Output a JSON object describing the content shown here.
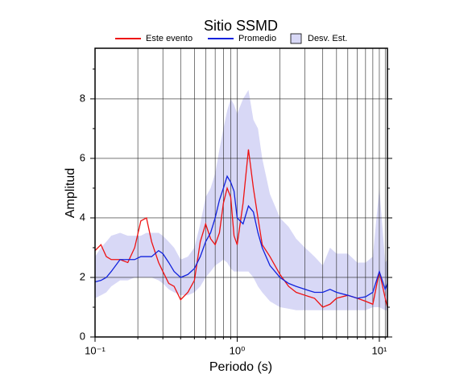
{
  "chart_data": {
    "type": "line",
    "title": "Sitio SSMD",
    "x_label": "Periodo (s)",
    "y_label": "Amplitud",
    "xscale": "log",
    "grid": true,
    "xlim": [
      0.1,
      11.4
    ],
    "ylim": [
      0,
      9.7
    ],
    "xticks": [
      {
        "value": 0.1,
        "label": "10⁻¹"
      },
      {
        "value": 1,
        "label": "10⁰"
      },
      {
        "value": 10,
        "label": "10¹"
      }
    ],
    "xminor": [
      0.2,
      0.3,
      0.4,
      0.5,
      0.6,
      0.7,
      0.8,
      0.9,
      2,
      3,
      4,
      5,
      6,
      7,
      8,
      9,
      11
    ],
    "yticks": [
      0,
      2,
      4,
      6,
      8
    ],
    "yminor": [
      1,
      3,
      5,
      7,
      9
    ],
    "x": [
      0.1,
      0.11,
      0.12,
      0.13,
      0.15,
      0.17,
      0.19,
      0.21,
      0.23,
      0.25,
      0.28,
      0.3,
      0.33,
      0.36,
      0.4,
      0.45,
      0.5,
      0.55,
      0.6,
      0.65,
      0.7,
      0.75,
      0.8,
      0.85,
      0.9,
      0.95,
      1.0,
      1.1,
      1.2,
      1.3,
      1.4,
      1.5,
      1.7,
      2,
      2.3,
      2.6,
      3,
      3.5,
      4,
      4.5,
      5,
      6,
      7,
      8,
      9,
      10,
      11,
      11.4
    ],
    "band": {
      "name": "Desv. Est.",
      "color": "#d8d8f6",
      "upper": [
        2.7,
        3.0,
        3.2,
        3.4,
        3.5,
        3.4,
        3.4,
        3.4,
        3.5,
        3.5,
        3.5,
        3.4,
        3.2,
        3.0,
        2.6,
        2.7,
        3.0,
        3.8,
        4.7,
        5.0,
        5.5,
        6.3,
        7.0,
        7.6,
        8.0,
        7.8,
        7.5,
        8.0,
        8.3,
        7.3,
        7.0,
        6.0,
        4.8,
        4.0,
        3.7,
        3.3,
        3.0,
        2.7,
        2.4,
        3.0,
        2.8,
        2.8,
        2.5,
        2.5,
        2.7,
        5.0,
        2.5,
        2.6
      ],
      "lower": [
        1.3,
        1.4,
        1.5,
        1.7,
        1.9,
        1.9,
        2.0,
        2.0,
        2.0,
        2.0,
        1.9,
        1.8,
        1.6,
        1.5,
        1.4,
        1.4,
        1.5,
        1.7,
        2.0,
        2.2,
        2.4,
        2.5,
        2.6,
        2.5,
        2.3,
        2.2,
        2.2,
        2.2,
        2.2,
        2.0,
        1.7,
        1.5,
        1.2,
        1.0,
        0.95,
        0.9,
        0.9,
        0.9,
        0.9,
        0.9,
        0.9,
        0.9,
        0.9,
        0.9,
        1.0,
        1.0,
        0.9,
        0.9
      ]
    },
    "series": [
      {
        "name": "Este evento",
        "color": "#ee1111",
        "values": [
          2.9,
          3.1,
          2.7,
          2.6,
          2.6,
          2.5,
          3.0,
          3.9,
          4.0,
          3.2,
          2.5,
          2.2,
          1.8,
          1.7,
          1.25,
          1.5,
          1.9,
          3.2,
          3.8,
          3.3,
          3.1,
          3.5,
          4.5,
          5.0,
          4.7,
          3.4,
          3.1,
          4.5,
          6.3,
          5.0,
          4.0,
          3.1,
          2.7,
          2.1,
          1.7,
          1.5,
          1.4,
          1.3,
          1.0,
          1.1,
          1.3,
          1.4,
          1.3,
          1.2,
          1.1,
          2.2,
          1.3,
          1.0
        ]
      },
      {
        "name": "Promedio",
        "color": "#1122dd",
        "values": [
          1.85,
          1.9,
          2.0,
          2.2,
          2.6,
          2.6,
          2.6,
          2.7,
          2.7,
          2.7,
          2.9,
          2.8,
          2.5,
          2.2,
          2.0,
          2.1,
          2.3,
          2.7,
          3.2,
          3.5,
          4.0,
          4.6,
          5.0,
          5.4,
          5.2,
          4.9,
          4.0,
          3.8,
          4.4,
          4.2,
          3.5,
          3.0,
          2.4,
          2.0,
          1.8,
          1.7,
          1.6,
          1.5,
          1.5,
          1.6,
          1.5,
          1.4,
          1.3,
          1.35,
          1.5,
          2.2,
          1.6,
          1.8
        ]
      }
    ]
  }
}
